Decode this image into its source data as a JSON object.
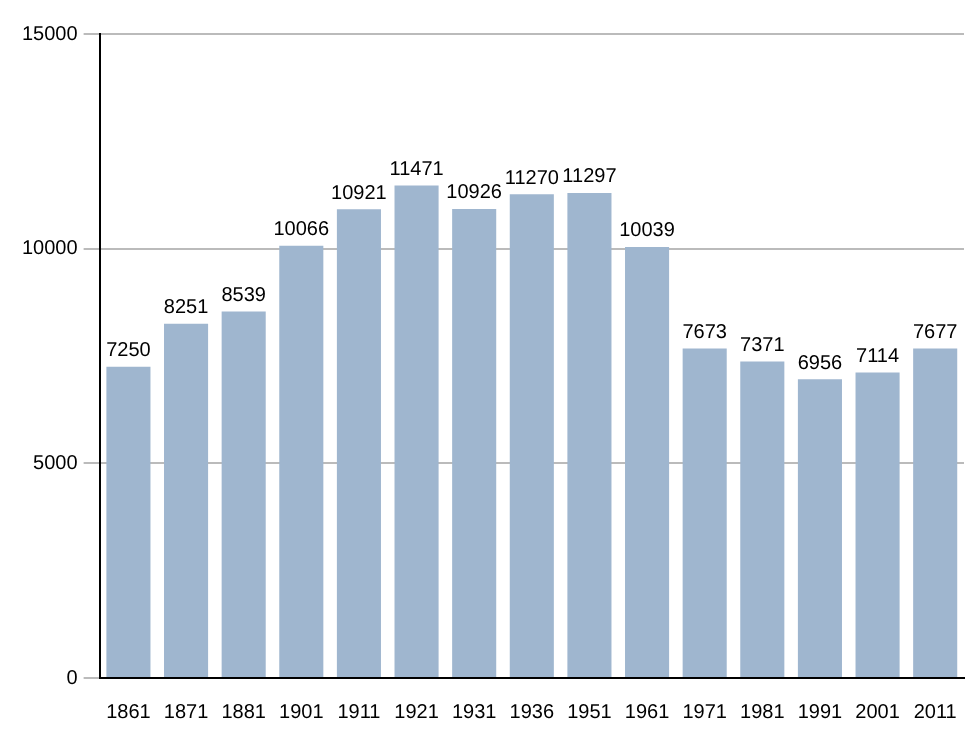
{
  "chart_data": {
    "type": "bar",
    "categories": [
      "1861",
      "1871",
      "1881",
      "1901",
      "1911",
      "1921",
      "1931",
      "1936",
      "1951",
      "1961",
      "1971",
      "1981",
      "1991",
      "2001",
      "2011"
    ],
    "values": [
      7250,
      8251,
      8539,
      10066,
      10921,
      11471,
      10926,
      11270,
      11297,
      10039,
      7673,
      7371,
      6956,
      7114,
      7677
    ],
    "color": "#9fb6cf",
    "ylim": [
      0,
      15000
    ],
    "yticks": [
      0,
      5000,
      10000,
      15000
    ],
    "grid": "y",
    "data_labels": true
  }
}
